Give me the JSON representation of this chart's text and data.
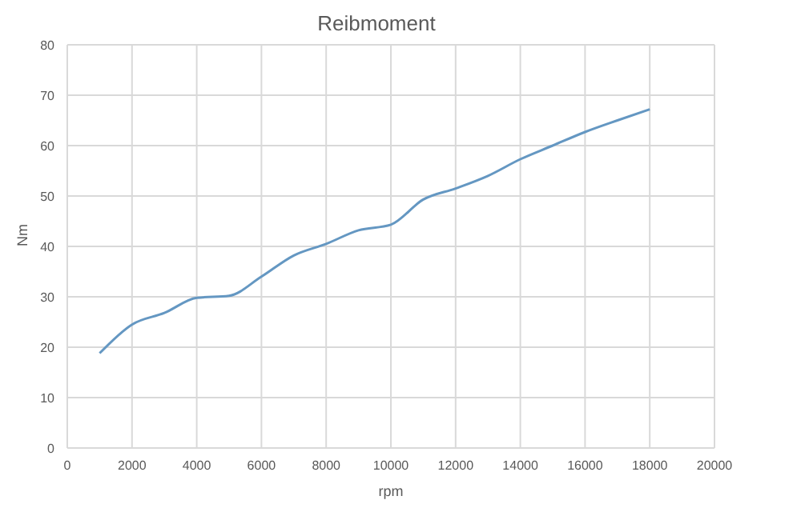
{
  "chart_data": {
    "type": "line",
    "title": "Reibmoment",
    "xlabel": "rpm",
    "ylabel": "Nm",
    "x": [
      1000,
      2000,
      3000,
      4000,
      5000,
      6000,
      7000,
      8000,
      9000,
      10000,
      11000,
      12000,
      13000,
      14000,
      15000,
      16000,
      17000,
      18000
    ],
    "series": [
      {
        "color": "#6497c2",
        "values": [
          18.8,
          24.5,
          26.8,
          29.8,
          30.2,
          34,
          38.2,
          40.5,
          43.2,
          44.3,
          49.3,
          51.5,
          54,
          57.3,
          60,
          62.7,
          65,
          67.2
        ]
      }
    ],
    "xlim": [
      0,
      20000
    ],
    "xticks": [
      0,
      2000,
      4000,
      6000,
      8000,
      10000,
      12000,
      14000,
      16000,
      18000,
      20000
    ],
    "ylim": [
      0,
      80
    ],
    "yticks": [
      0,
      10,
      20,
      30,
      40,
      50,
      60,
      70,
      80
    ],
    "grid": true,
    "marker": "none",
    "line_style": "solid",
    "legend": false
  }
}
